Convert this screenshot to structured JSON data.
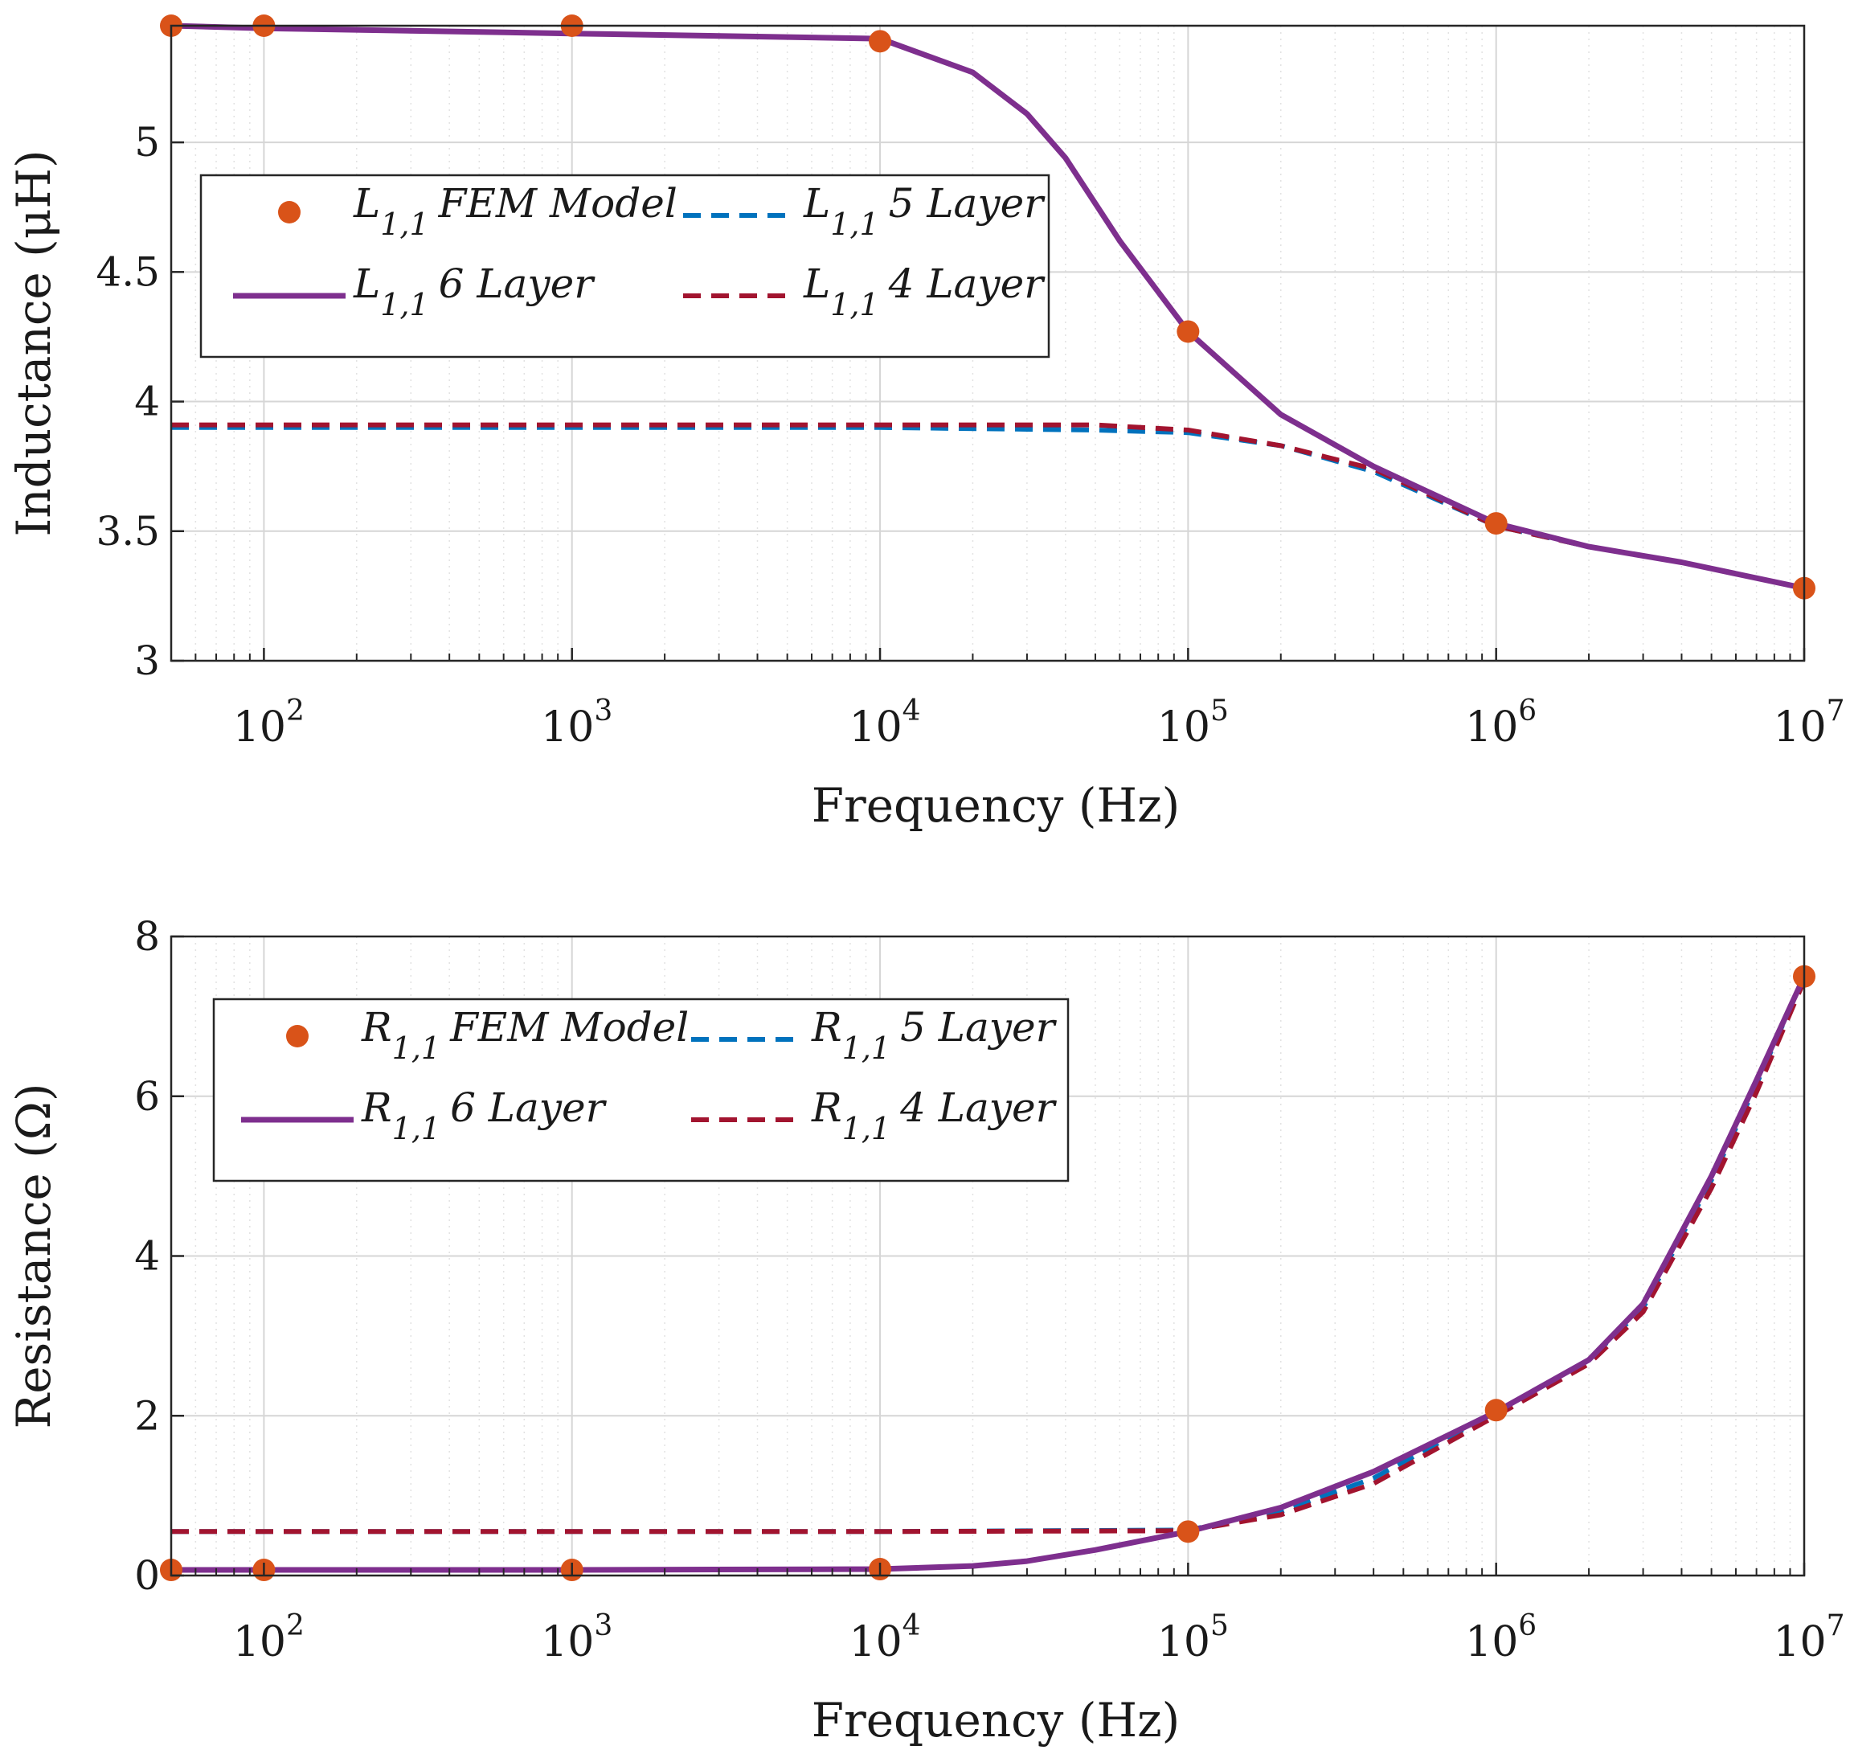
{
  "chart_data": [
    {
      "type": "line",
      "xscale": "log",
      "xlim": [
        50,
        10000000
      ],
      "ylim": [
        3,
        5.45
      ],
      "xlabel": "Frequency (Hz)",
      "ylabel": "Inductance (μH)",
      "xticks": [
        {
          "value": 100,
          "exp": "2"
        },
        {
          "value": 1000,
          "exp": "3"
        },
        {
          "value": 10000,
          "exp": "4"
        },
        {
          "value": 100000,
          "exp": "5"
        },
        {
          "value": 1000000,
          "exp": "6"
        },
        {
          "value": 10000000,
          "exp": "7"
        }
      ],
      "tick_base": "10",
      "yticks": [
        {
          "value": 3,
          "label": "3"
        },
        {
          "value": 3.5,
          "label": "3.5"
        },
        {
          "value": 4,
          "label": "4"
        },
        {
          "value": 4.5,
          "label": "4.5"
        },
        {
          "value": 5,
          "label": "5"
        }
      ],
      "grid": true,
      "legend_position": "upper-left",
      "series": [
        {
          "key": "fem",
          "name": "FEM Model",
          "sym": "L",
          "sub": "1,1",
          "style": "markers",
          "color": "#D95319",
          "x": [
            50,
            100,
            1000,
            10000,
            100000,
            1000000,
            10000000
          ],
          "y": [
            5.45,
            5.45,
            5.45,
            5.39,
            4.27,
            3.53,
            3.28
          ]
        },
        {
          "key": "six",
          "name": "6 Layer",
          "sym": "L",
          "sub": "1,1",
          "style": "solid",
          "color": "#7E2F8E",
          "x": [
            50,
            100,
            1000,
            10000,
            20000,
            30000,
            40000,
            60000,
            100000,
            200000,
            400000,
            1000000,
            2000000,
            4000000,
            10000000
          ],
          "y": [
            5.45,
            5.44,
            5.42,
            5.4,
            5.27,
            5.11,
            4.94,
            4.62,
            4.27,
            3.95,
            3.75,
            3.53,
            3.44,
            3.38,
            3.28
          ]
        },
        {
          "key": "five",
          "name": "5 Layer",
          "sym": "L",
          "sub": "1,1",
          "style": "dashed",
          "color": "#0072BD",
          "x": [
            50,
            1000,
            10000,
            50000,
            100000,
            200000,
            400000,
            1000000,
            2000000,
            4000000,
            10000000
          ],
          "y": [
            3.9,
            3.9,
            3.9,
            3.89,
            3.88,
            3.83,
            3.73,
            3.52,
            3.44,
            3.38,
            3.28
          ]
        },
        {
          "key": "four",
          "name": "4 Layer",
          "sym": "L",
          "sub": "1,1",
          "style": "dashed",
          "color": "#A2142F",
          "x": [
            50,
            1000,
            10000,
            50000,
            100000,
            200000,
            400000,
            1000000,
            2000000,
            4000000,
            10000000
          ],
          "y": [
            3.91,
            3.91,
            3.91,
            3.91,
            3.89,
            3.83,
            3.74,
            3.52,
            3.44,
            3.38,
            3.28
          ]
        }
      ]
    },
    {
      "type": "line",
      "xscale": "log",
      "xlim": [
        50,
        10000000
      ],
      "ylim": [
        0,
        8
      ],
      "xlabel": "Frequency (Hz)",
      "ylabel": "Resistance (Ω)",
      "xticks": [
        {
          "value": 100,
          "exp": "2"
        },
        {
          "value": 1000,
          "exp": "3"
        },
        {
          "value": 10000,
          "exp": "4"
        },
        {
          "value": 100000,
          "exp": "5"
        },
        {
          "value": 1000000,
          "exp": "6"
        },
        {
          "value": 10000000,
          "exp": "7"
        }
      ],
      "tick_base": "10",
      "yticks": [
        {
          "value": 0,
          "label": "0"
        },
        {
          "value": 2,
          "label": "2"
        },
        {
          "value": 4,
          "label": "4"
        },
        {
          "value": 6,
          "label": "6"
        },
        {
          "value": 8,
          "label": "8"
        }
      ],
      "grid": true,
      "legend_position": "upper-left",
      "series": [
        {
          "key": "fem",
          "name": "FEM Model",
          "sym": "R",
          "sub": "1,1",
          "style": "markers",
          "color": "#D95319",
          "x": [
            50,
            100,
            1000,
            10000,
            100000,
            1000000,
            10000000
          ],
          "y": [
            0.07,
            0.07,
            0.07,
            0.08,
            0.55,
            2.07,
            7.5
          ]
        },
        {
          "key": "six",
          "name": "6 Layer",
          "sym": "R",
          "sub": "1,1",
          "style": "solid",
          "color": "#7E2F8E",
          "x": [
            50,
            1000,
            10000,
            20000,
            30000,
            50000,
            100000,
            200000,
            400000,
            1000000,
            2000000,
            3000000,
            5000000,
            7000000,
            10000000
          ],
          "y": [
            0.07,
            0.07,
            0.08,
            0.12,
            0.18,
            0.32,
            0.55,
            0.85,
            1.3,
            2.05,
            2.7,
            3.4,
            5.0,
            6.2,
            7.5
          ]
        },
        {
          "key": "five",
          "name": "5 Layer",
          "sym": "R",
          "sub": "1,1",
          "style": "dashed",
          "color": "#0072BD",
          "x": [
            50,
            10000,
            100000,
            200000,
            400000,
            1000000,
            2000000,
            3000000,
            5000000,
            7000000,
            10000000
          ],
          "y": [
            0.55,
            0.55,
            0.57,
            0.8,
            1.22,
            2.05,
            2.7,
            3.35,
            4.95,
            6.15,
            7.5
          ]
        },
        {
          "key": "four",
          "name": "4 Layer",
          "sym": "R",
          "sub": "1,1",
          "style": "dashed",
          "color": "#A2142F",
          "x": [
            50,
            10000,
            100000,
            200000,
            400000,
            1000000,
            2000000,
            3000000,
            5000000,
            7000000,
            10000000
          ],
          "y": [
            0.55,
            0.55,
            0.56,
            0.76,
            1.15,
            2.0,
            2.65,
            3.3,
            4.85,
            6.05,
            7.45
          ]
        }
      ]
    }
  ]
}
